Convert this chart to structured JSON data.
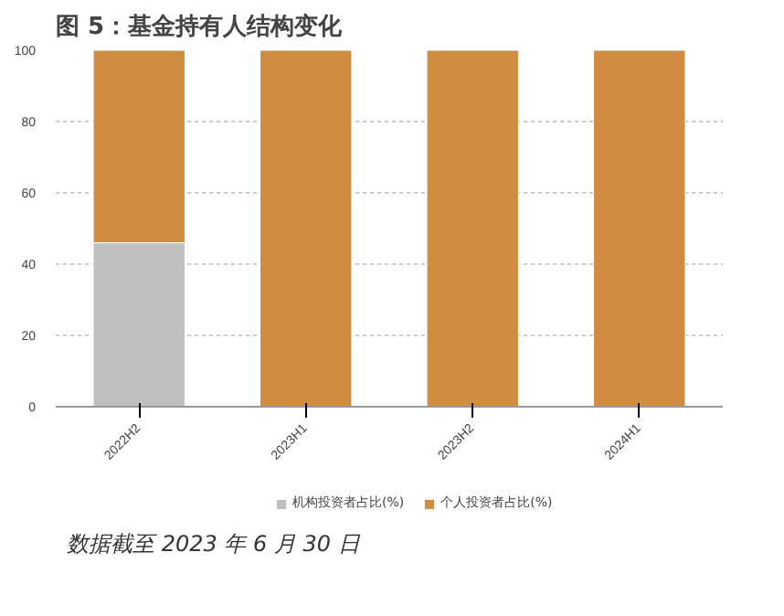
{
  "chart_data": {
    "type": "bar",
    "title": "图 5：基金持有人结构变化",
    "categories": [
      "2022H2",
      "2023H1",
      "2023H2",
      "2024H1"
    ],
    "stacked": true,
    "series": [
      {
        "name": "机构投资者占比(%)",
        "color": "#bfbfbf",
        "values": [
          46,
          null,
          null,
          null
        ]
      },
      {
        "name": "个人投资者占比(%)",
        "color": "#d08c40",
        "values": [
          54,
          100,
          100,
          100
        ]
      }
    ],
    "ylim": [
      0,
      100
    ],
    "yticks": [
      0,
      20,
      40,
      60,
      80,
      100
    ],
    "grid": "y",
    "legend": "bottom",
    "annotations": [
      "数据截至 2023 年 6 月 30 日"
    ]
  }
}
